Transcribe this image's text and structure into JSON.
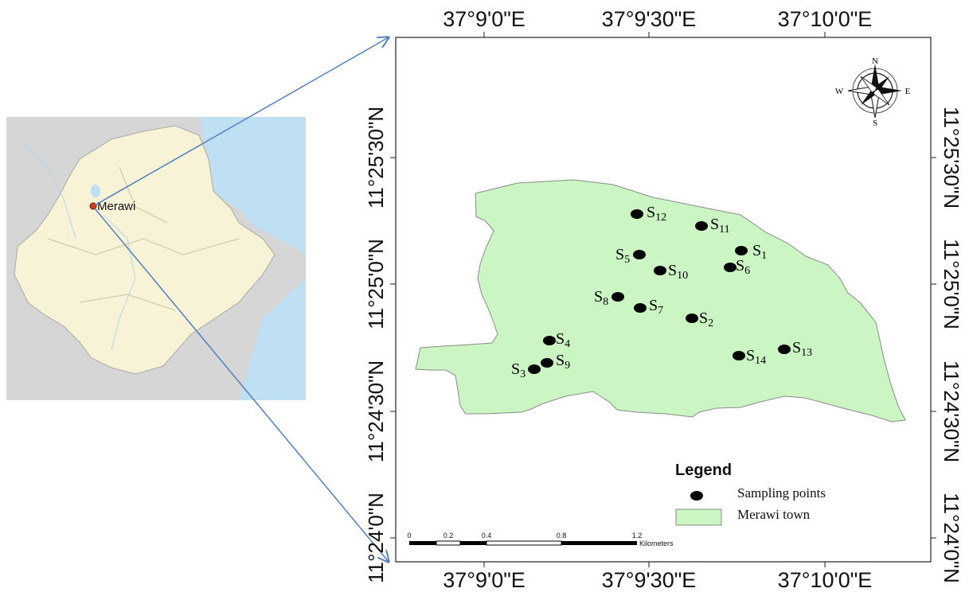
{
  "inset_map": {
    "town_label": "Merawi"
  },
  "graticule": {
    "top": [
      "37°9'0\"E",
      "37°9'30\"E",
      "37°10'0\"E"
    ],
    "bottom": [
      "37°9'0\"E",
      "37°9'30\"E",
      "37°10'0\"E"
    ],
    "left": [
      "11°25'30\"N",
      "11°25'0\"N",
      "11°24'30\"N",
      "11°24'0\"N"
    ],
    "right": [
      "11°25'30\"N",
      "11°25'0\"N",
      "11°24'30\"N",
      "11°24'0\"N"
    ]
  },
  "north_arrow": {
    "n": "N",
    "s": "S",
    "e": "E",
    "w": "W"
  },
  "sampling_points": [
    {
      "base": "S",
      "sub": "1"
    },
    {
      "base": "S",
      "sub": "2"
    },
    {
      "base": "S",
      "sub": "3"
    },
    {
      "base": "S",
      "sub": "4"
    },
    {
      "base": "S",
      "sub": "5"
    },
    {
      "base": "S",
      "sub": "6"
    },
    {
      "base": "S",
      "sub": "7"
    },
    {
      "base": "S",
      "sub": "8"
    },
    {
      "base": "S",
      "sub": "9"
    },
    {
      "base": "S",
      "sub": "10"
    },
    {
      "base": "S",
      "sub": "11"
    },
    {
      "base": "S",
      "sub": "12"
    },
    {
      "base": "S",
      "sub": "13"
    },
    {
      "base": "S",
      "sub": "14"
    }
  ],
  "legend": {
    "title": "Legend",
    "items": [
      {
        "label": "Sampling points"
      },
      {
        "label": "Merawi town"
      }
    ]
  },
  "scale_bar": {
    "ticks": [
      "0",
      "0.2",
      "0.4",
      "0.8",
      "1.2"
    ],
    "unit": "Kilometers"
  },
  "colors": {
    "town_fill": "#ccf5c4",
    "town_stroke": "#8a8a8a",
    "inset_country": "#f8f3d6",
    "inset_neighbors": "#d6d6d6",
    "inset_water": "#bfe0f2",
    "arrow": "#4f7fbf",
    "point": "#000000"
  }
}
